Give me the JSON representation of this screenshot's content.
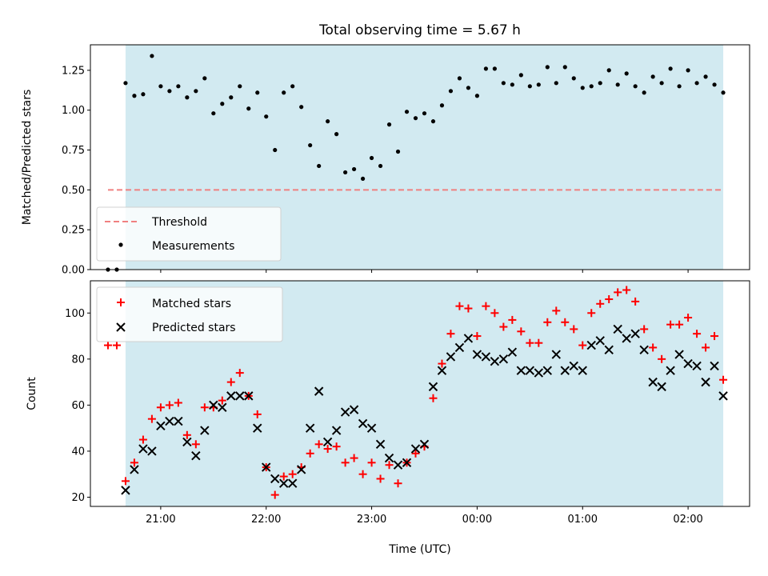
{
  "chart_data": [
    {
      "type": "scatter",
      "title": "Total observing time = 5.67 h",
      "xlabel": "",
      "ylabel": "Matched/Predicted stars",
      "ylim": [
        0,
        1.41
      ],
      "yticks": [
        0.0,
        0.25,
        0.5,
        0.75,
        1.0,
        1.25
      ],
      "ytick_labels": [
        "0.00",
        "0.25",
        "0.50",
        "0.75",
        "1.00",
        "1.25"
      ],
      "legend_location": "lower-left",
      "shaded_span": {
        "start": "20:40",
        "end": "02:20",
        "color": "#add8e6"
      },
      "threshold": {
        "name": "Threshold",
        "value": 0.5,
        "x_start": "20:30",
        "x_end": "02:20",
        "color": "#f08080"
      },
      "measurements": {
        "name": "Measurements",
        "color": "#000000",
        "x": [
          "20:30",
          "20:35",
          "20:40",
          "20:45",
          "20:50",
          "20:55",
          "21:00",
          "21:05",
          "21:10",
          "21:15",
          "21:20",
          "21:25",
          "21:30",
          "21:35",
          "21:40",
          "21:45",
          "21:50",
          "21:55",
          "22:00",
          "22:05",
          "22:10",
          "22:15",
          "22:20",
          "22:25",
          "22:30",
          "22:35",
          "22:40",
          "22:45",
          "22:50",
          "22:55",
          "23:00",
          "23:05",
          "23:10",
          "23:15",
          "23:20",
          "23:25",
          "23:30",
          "23:35",
          "23:40",
          "23:45",
          "23:50",
          "23:55",
          "00:00",
          "00:05",
          "00:10",
          "00:15",
          "00:20",
          "00:25",
          "00:30",
          "00:35",
          "00:40",
          "00:45",
          "00:50",
          "00:55",
          "01:00",
          "01:05",
          "01:10",
          "01:15",
          "01:20",
          "01:25",
          "01:30",
          "01:35",
          "01:40",
          "01:45",
          "01:50",
          "01:55",
          "02:00",
          "02:05",
          "02:10",
          "02:15",
          "02:20"
        ],
        "y": [
          0.0,
          0.0,
          1.17,
          1.09,
          1.1,
          1.34,
          1.15,
          1.12,
          1.15,
          1.08,
          1.12,
          1.2,
          0.98,
          1.04,
          1.08,
          1.15,
          1.01,
          1.11,
          0.96,
          0.75,
          1.11,
          1.15,
          1.02,
          0.78,
          0.65,
          0.93,
          0.85,
          0.61,
          0.63,
          0.57,
          0.7,
          0.65,
          0.91,
          0.74,
          0.99,
          0.95,
          0.98,
          0.93,
          1.03,
          1.12,
          1.2,
          1.14,
          1.09,
          1.26,
          1.26,
          1.17,
          1.16,
          1.22,
          1.15,
          1.16,
          1.27,
          1.17,
          1.27,
          1.2,
          1.14,
          1.15,
          1.17,
          1.25,
          1.16,
          1.23,
          1.15,
          1.11,
          1.21,
          1.17,
          1.26,
          1.15,
          1.25,
          1.17,
          1.21,
          1.16,
          1.11
        ]
      }
    },
    {
      "type": "scatter",
      "title": "",
      "xlabel": "Time (UTC)",
      "ylabel": "Count",
      "ylim": [
        16,
        114
      ],
      "yticks": [
        20,
        40,
        60,
        80,
        100
      ],
      "ytick_labels": [
        "20",
        "40",
        "60",
        "80",
        "100"
      ],
      "xlim": [
        "20:20",
        "02:35"
      ],
      "xticks": [
        "21:00",
        "22:00",
        "23:00",
        "00:00",
        "01:00",
        "02:00"
      ],
      "legend_location": "upper-left",
      "shaded_span": {
        "start": "20:40",
        "end": "02:20",
        "color": "#add8e6"
      },
      "series": [
        {
          "name": "Matched stars",
          "marker": "plus",
          "color": "#ff0000",
          "x": [
            "20:30",
            "20:35",
            "20:40",
            "20:45",
            "20:50",
            "20:55",
            "21:00",
            "21:05",
            "21:10",
            "21:15",
            "21:20",
            "21:25",
            "21:30",
            "21:35",
            "21:40",
            "21:45",
            "21:50",
            "21:55",
            "22:00",
            "22:05",
            "22:10",
            "22:15",
            "22:20",
            "22:25",
            "22:30",
            "22:35",
            "22:40",
            "22:45",
            "22:50",
            "22:55",
            "23:00",
            "23:05",
            "23:10",
            "23:15",
            "23:20",
            "23:25",
            "23:30",
            "23:35",
            "23:40",
            "23:45",
            "23:50",
            "23:55",
            "00:00",
            "00:05",
            "00:10",
            "00:15",
            "00:20",
            "00:25",
            "00:30",
            "00:35",
            "00:40",
            "00:45",
            "00:50",
            "00:55",
            "01:00",
            "01:05",
            "01:10",
            "01:15",
            "01:20",
            "01:25",
            "01:30",
            "01:35",
            "01:40",
            "01:45",
            "01:50",
            "01:55",
            "02:00",
            "02:05",
            "02:10",
            "02:15",
            "02:20"
          ],
          "y": [
            86,
            86,
            27,
            35,
            45,
            54,
            59,
            60,
            61,
            47,
            43,
            59,
            59,
            62,
            70,
            74,
            64,
            56,
            33,
            21,
            29,
            30,
            33,
            39,
            43,
            41,
            42,
            35,
            37,
            30,
            35,
            28,
            34,
            26,
            35,
            39,
            42,
            63,
            78,
            91,
            103,
            102,
            90,
            103,
            100,
            94,
            97,
            92,
            87,
            87,
            96,
            101,
            96,
            93,
            86,
            100,
            104,
            106,
            109,
            110,
            105,
            93,
            85,
            80,
            95,
            95,
            98,
            91,
            85,
            90,
            71
          ]
        },
        {
          "name": "Predicted stars",
          "marker": "x",
          "color": "#000000",
          "x": [
            "20:40",
            "20:45",
            "20:50",
            "20:55",
            "21:00",
            "21:05",
            "21:10",
            "21:15",
            "21:20",
            "21:25",
            "21:30",
            "21:35",
            "21:40",
            "21:45",
            "21:50",
            "21:55",
            "22:00",
            "22:05",
            "22:10",
            "22:15",
            "22:20",
            "22:25",
            "22:30",
            "22:35",
            "22:40",
            "22:45",
            "22:50",
            "22:55",
            "23:00",
            "23:05",
            "23:10",
            "23:15",
            "23:20",
            "23:25",
            "23:30",
            "23:35",
            "23:40",
            "23:45",
            "23:50",
            "23:55",
            "00:00",
            "00:05",
            "00:10",
            "00:15",
            "00:20",
            "00:25",
            "00:30",
            "00:35",
            "00:40",
            "00:45",
            "00:50",
            "00:55",
            "01:00",
            "01:05",
            "01:10",
            "01:15",
            "01:20",
            "01:25",
            "01:30",
            "01:35",
            "01:40",
            "01:45",
            "01:50",
            "01:55",
            "02:00",
            "02:05",
            "02:10",
            "02:15",
            "02:20"
          ],
          "y": [
            23,
            32,
            41,
            40,
            51,
            53,
            53,
            44,
            38,
            49,
            60,
            59,
            64,
            64,
            64,
            50,
            33,
            28,
            26,
            26,
            32,
            50,
            66,
            44,
            49,
            57,
            58,
            52,
            50,
            43,
            37,
            34,
            35,
            41,
            43,
            68,
            75,
            81,
            85,
            89,
            82,
            81,
            79,
            80,
            83,
            75,
            75,
            74,
            75,
            82,
            75,
            77,
            75,
            86,
            88,
            84,
            93,
            89,
            91,
            84,
            70,
            68,
            75,
            82,
            78,
            77,
            70,
            77,
            64
          ]
        }
      ]
    }
  ]
}
